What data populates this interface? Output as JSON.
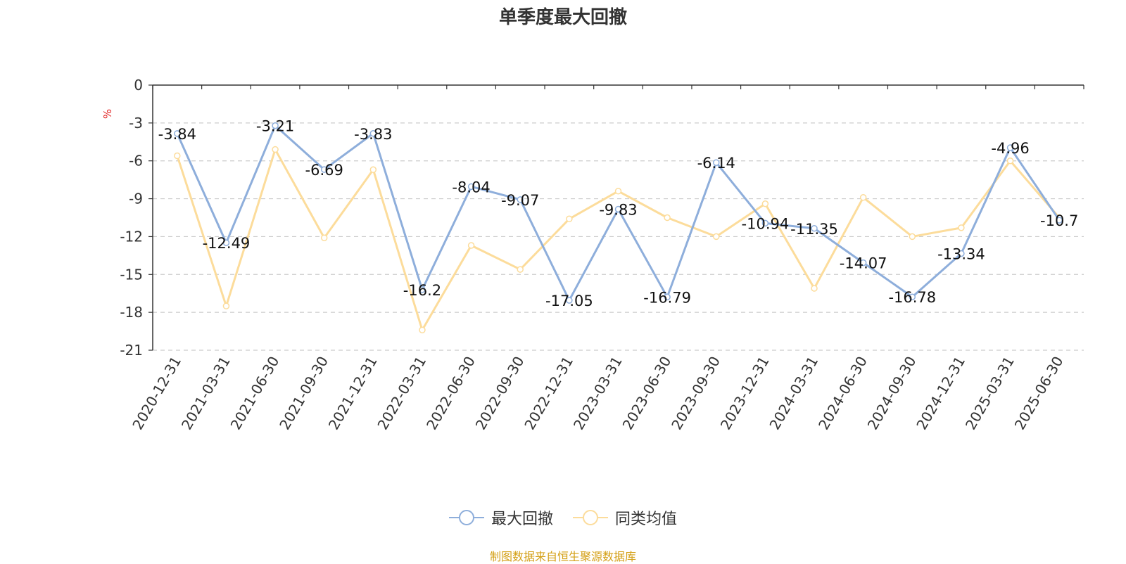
{
  "title": "单季度最大回撤",
  "source": "制图数据来自恒生聚源数据库",
  "chart_data": {
    "type": "line",
    "title": "单季度最大回撤",
    "ylabel": "%",
    "xlabel": "",
    "ylim": [
      -21,
      0
    ],
    "yticks": [
      0,
      -3,
      -6,
      -9,
      -12,
      -15,
      -18,
      -21
    ],
    "grid": true,
    "legend_position": "bottom-center",
    "categories": [
      "2020-12-31",
      "2021-03-31",
      "2021-06-30",
      "2021-09-30",
      "2021-12-31",
      "2022-03-31",
      "2022-06-30",
      "2022-09-30",
      "2022-12-31",
      "2023-03-31",
      "2023-06-30",
      "2023-09-30",
      "2023-12-31",
      "2024-03-31",
      "2024-06-30",
      "2024-09-30",
      "2024-12-31",
      "2025-03-31",
      "2025-06-30"
    ],
    "series": [
      {
        "name": "最大回撤",
        "color": "#8eaedb",
        "show_labels": true,
        "values": [
          -3.84,
          -12.49,
          -3.21,
          -6.69,
          -3.83,
          -16.2,
          -8.04,
          -9.07,
          -17.05,
          -9.83,
          -16.79,
          -6.14,
          -10.94,
          -11.35,
          -14.07,
          -16.78,
          -13.34,
          -4.96,
          -10.7
        ]
      },
      {
        "name": "同类均值",
        "color": "#fcdc9b",
        "show_labels": false,
        "values": [
          -5.6,
          -17.5,
          -5.1,
          -12.1,
          -6.7,
          -19.4,
          -12.7,
          -14.6,
          -10.6,
          -8.4,
          -10.5,
          -12.0,
          -9.4,
          -16.1,
          -8.9,
          -12.0,
          -11.3,
          -6.0,
          -10.5
        ]
      }
    ]
  }
}
